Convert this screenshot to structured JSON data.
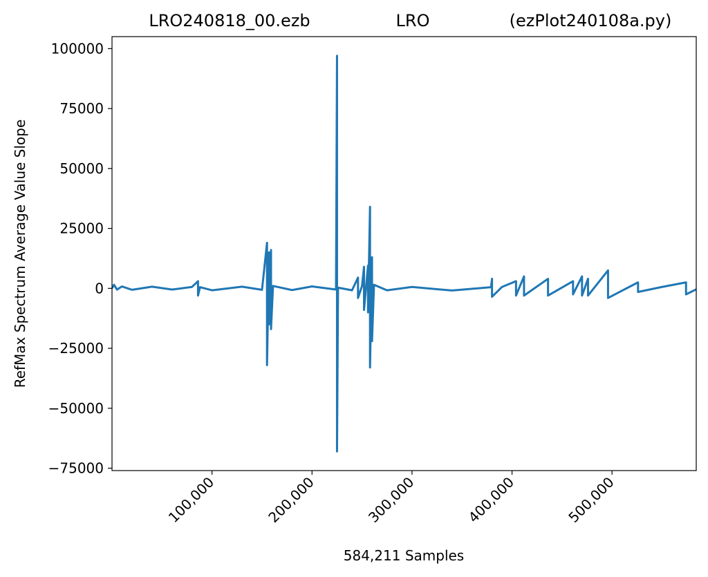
{
  "chart_data": {
    "type": "line",
    "title": [
      "LRO240818_00.ezb",
      "LRO",
      "(ezPlot240108a.py)"
    ],
    "x_label": "584,211 Samples",
    "y_label": "RefMax Spectrum Average Value Slope",
    "xlim": [
      0,
      584211
    ],
    "ylim": [
      -76000,
      105000
    ],
    "xticks": [
      {
        "value": 100000,
        "label": "100,000"
      },
      {
        "value": 200000,
        "label": "200,000"
      },
      {
        "value": 300000,
        "label": "300,000"
      },
      {
        "value": 400000,
        "label": "400,000"
      },
      {
        "value": 500000,
        "label": "500,000"
      }
    ],
    "yticks": [
      {
        "value": -75000,
        "label": "−75000"
      },
      {
        "value": -50000,
        "label": "−50000"
      },
      {
        "value": -25000,
        "label": "−25000"
      },
      0,
      25000,
      50000,
      75000,
      100000
    ],
    "x": [
      0,
      2000,
      5000,
      10000,
      20000,
      40000,
      60000,
      80000,
      86000,
      86000,
      88000,
      100000,
      130000,
      150000,
      155000,
      155000,
      157000,
      157000,
      159000,
      159000,
      161000,
      180000,
      200000,
      224000,
      225000,
      225000,
      226000,
      240000,
      246000,
      246000,
      250000,
      252000,
      252000,
      256000,
      256000,
      258000,
      258000,
      260000,
      260000,
      262000,
      275000,
      300000,
      340000,
      379000,
      380000,
      380000,
      390000,
      404000,
      404000,
      412000,
      412000,
      436000,
      436000,
      461000,
      461000,
      470000,
      470000,
      476000,
      476000,
      496000,
      496000,
      526000,
      526000,
      550000,
      574000,
      574000,
      584211
    ],
    "series": [
      {
        "color": "#1f77b4",
        "values": [
          0,
          1500,
          -500,
          800,
          -600,
          700,
          -500,
          600,
          3000,
          -3000,
          500,
          -800,
          700,
          -600,
          19000,
          -32000,
          15000,
          -15000,
          16000,
          -17000,
          1000,
          -700,
          800,
          -500,
          97000,
          -68000,
          300,
          -800,
          4500,
          -4000,
          1000,
          9000,
          -9000,
          9500,
          -10000,
          34000,
          -33000,
          13000,
          -22000,
          1500,
          -800,
          600,
          -900,
          500,
          4000,
          -3500,
          600,
          3000,
          -3000,
          5000,
          -3000,
          4000,
          -3000,
          3000,
          -2500,
          5000,
          -3000,
          4000,
          -3000,
          7500,
          -4000,
          2500,
          -1500,
          600,
          2500,
          -2500,
          -400
        ]
      }
    ]
  }
}
